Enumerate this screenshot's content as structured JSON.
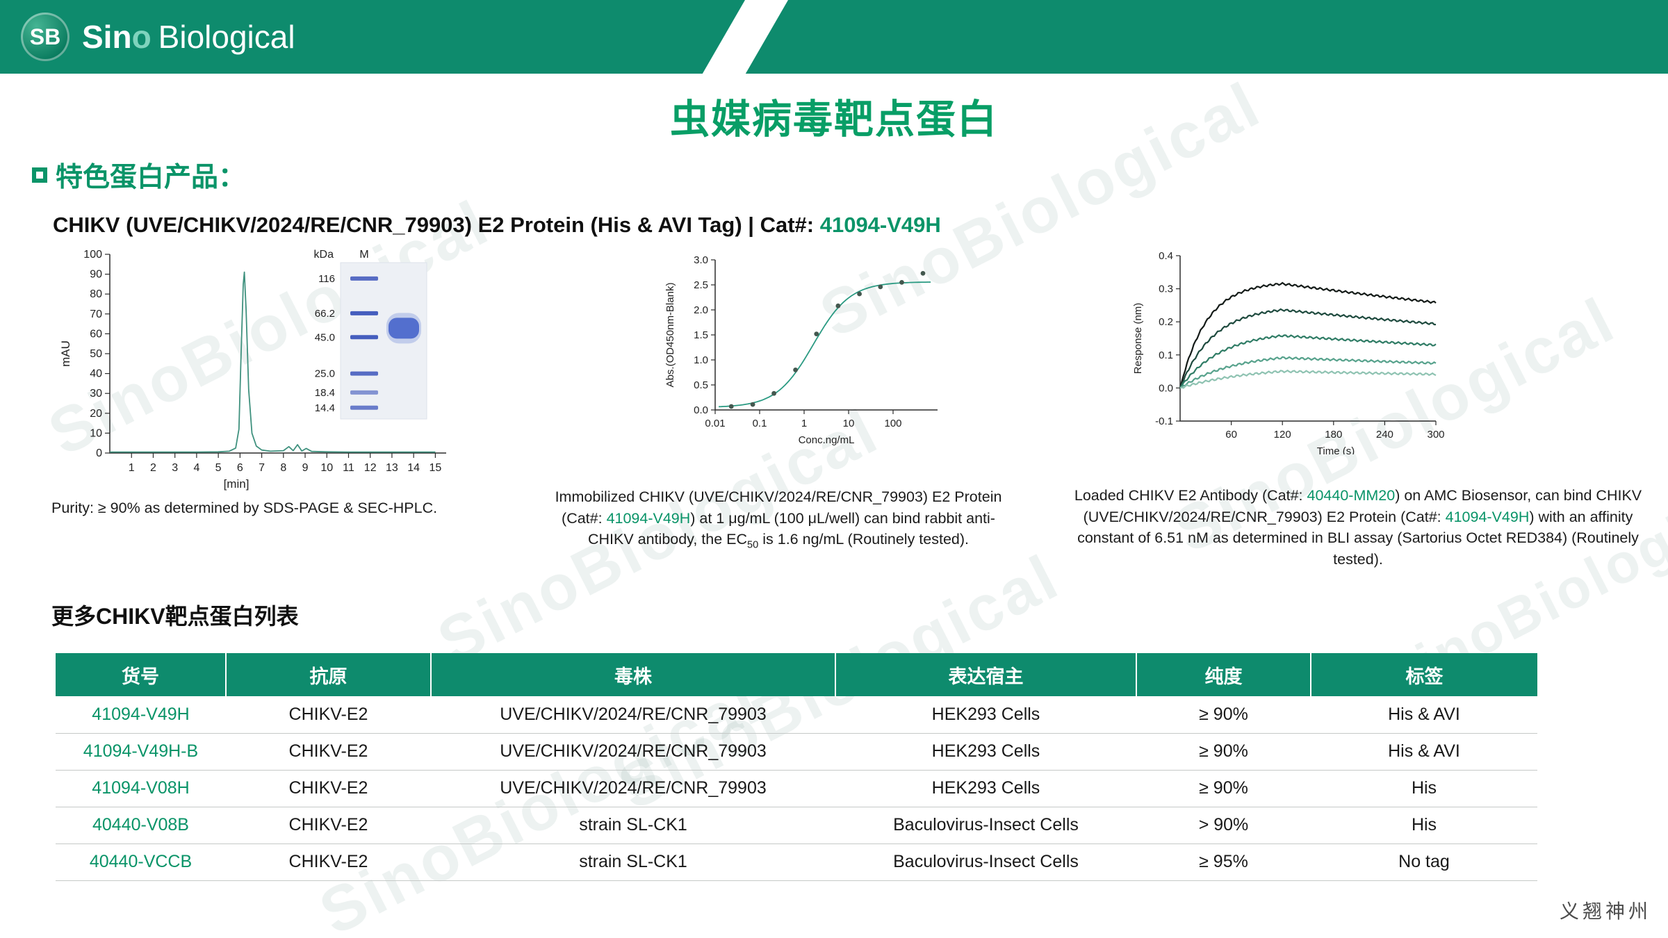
{
  "brand": {
    "logo_badge": "SB",
    "logo_sin": "Sin",
    "logo_o": "o",
    "logo_biological": "Biological",
    "green": "#0e8b6d"
  },
  "page": {
    "title": "虫媒病毒靶点蛋白",
    "section1_title": "特色蛋白产品：",
    "section2_title": "更多CHIKV靶点蛋白列表",
    "footer": "义翘神州",
    "watermark": "SinoBiological"
  },
  "product": {
    "heading_parts": [
      {
        "t": "CHIKV (UVE/CHIKV/2024/RE/CNR_79903) E2 Protein (His & AVI Tag) | Cat#: "
      },
      {
        "t": "41094-V49H",
        "c": "green"
      }
    ]
  },
  "figures": {
    "hplc_caption": "Purity: ≥ 90% as determined by SDS-PAGE & SEC-HPLC.",
    "elisa_caption": [
      {
        "t": "Immobilized CHIKV (UVE/CHIKV/2024/RE/CNR_79903) E2 Protein (Cat#: "
      },
      {
        "t": "41094-V49H",
        "c": "green"
      },
      {
        "t": ") at 1 μg/mL (100 μL/well) can bind rabbit anti- CHIKV antibody, the EC"
      },
      {
        "t": "50",
        "sub": true
      },
      {
        "t": " is 1.6 ng/mL (Routinely tested)."
      }
    ],
    "bli_caption": [
      {
        "t": "Loaded CHIKV E2 Antibody (Cat#: "
      },
      {
        "t": "40440-MM20",
        "c": "green"
      },
      {
        "t": ") on AMC Biosensor, can bind CHIKV (UVE/CHIKV/2024/RE/CNR_79903) E2 Protein (Cat#: "
      },
      {
        "t": "41094-V49H",
        "c": "green"
      },
      {
        "t": ") with an affinity constant of 6.51 nM as determined in BLI assay (Sartorius Octet RED384) (Routinely tested)."
      }
    ]
  },
  "table": {
    "headers": [
      "货号",
      "抗原",
      "毒株",
      "表达宿主",
      "纯度",
      "标签"
    ],
    "rows": [
      [
        "41094-V49H",
        "CHIKV-E2",
        "UVE/CHIKV/2024/RE/CNR_79903",
        "HEK293 Cells",
        "≥ 90%",
        "His & AVI"
      ],
      [
        "41094-V49H-B",
        "CHIKV-E2",
        "UVE/CHIKV/2024/RE/CNR_79903",
        "HEK293 Cells",
        "≥ 90%",
        "His & AVI"
      ],
      [
        "41094-V08H",
        "CHIKV-E2",
        "UVE/CHIKV/2024/RE/CNR_79903",
        "HEK293 Cells",
        "≥ 90%",
        "His"
      ],
      [
        "40440-V08B",
        "CHIKV-E2",
        "strain SL-CK1",
        "Baculovirus-Insect Cells",
        "> 90%",
        "His"
      ],
      [
        "40440-VCCB",
        "CHIKV-E2",
        "strain SL-CK1",
        "Baculovirus-Insect Cells",
        "≥ 95%",
        "No tag"
      ]
    ]
  },
  "chart_data": [
    {
      "id": "sec-hplc",
      "type": "line",
      "title": "SEC-HPLC purity trace with SDS-PAGE gel inset",
      "xlabel": "[min]",
      "ylabel": "mAU",
      "xlim": [
        0,
        15.5
      ],
      "ylim": [
        0,
        100
      ],
      "xticks": [
        1,
        2,
        3,
        4,
        5,
        6,
        7,
        8,
        9,
        10,
        11,
        12,
        13,
        14,
        15
      ],
      "yticks": [
        0,
        10,
        20,
        30,
        40,
        50,
        60,
        70,
        80,
        90,
        100
      ],
      "line_color": "#3f917e",
      "peak_min": 6.2,
      "peak_mau": 91,
      "points": [
        [
          0,
          0.5
        ],
        [
          1,
          0.5
        ],
        [
          2,
          0.5
        ],
        [
          3,
          0.5
        ],
        [
          4,
          0.5
        ],
        [
          5,
          0.6
        ],
        [
          5.5,
          0.9
        ],
        [
          5.8,
          2.5
        ],
        [
          5.95,
          12
        ],
        [
          6.05,
          50
        ],
        [
          6.15,
          85
        ],
        [
          6.2,
          91
        ],
        [
          6.28,
          72
        ],
        [
          6.4,
          32
        ],
        [
          6.55,
          10
        ],
        [
          6.75,
          3.5
        ],
        [
          7.0,
          1.5
        ],
        [
          7.4,
          0.9
        ],
        [
          8.0,
          1.2
        ],
        [
          8.25,
          3.2
        ],
        [
          8.45,
          1.2
        ],
        [
          8.65,
          4.2
        ],
        [
          8.85,
          1.0
        ],
        [
          9.05,
          2.3
        ],
        [
          9.3,
          0.8
        ],
        [
          10,
          0.6
        ],
        [
          11,
          0.5
        ],
        [
          12,
          0.5
        ],
        [
          13,
          0.5
        ],
        [
          14,
          0.5
        ],
        [
          15,
          0.5
        ]
      ],
      "gel": {
        "unit_label": "kDa",
        "lane_label": "M",
        "markers": [
          "116",
          "66.2",
          "45.0",
          "25.0",
          "18.4",
          "14.4"
        ],
        "sample_band_kda": 52
      }
    },
    {
      "id": "elisa",
      "type": "scatter",
      "title": "ELISA binding curve",
      "xlabel": "Conc.ng/mL",
      "ylabel": "Abs.(OD450nm-Blank)",
      "xscale": "log",
      "xlim": [
        0.01,
        1000
      ],
      "ylim": [
        0,
        3
      ],
      "xticks": [
        0.01,
        0.1,
        1,
        10,
        100
      ],
      "yticks": [
        0,
        0.5,
        1,
        1.5,
        2,
        2.5,
        3
      ],
      "point_color": "#44584f",
      "line_color": "#2a9a82",
      "x": [
        0.023,
        0.07,
        0.21,
        0.64,
        1.9,
        5.8,
        17.5,
        52,
        157,
        470
      ],
      "y": [
        0.07,
        0.11,
        0.33,
        0.8,
        1.52,
        2.08,
        2.32,
        2.46,
        2.55,
        2.73
      ],
      "fit": {
        "bottom": 0.05,
        "top": 2.56,
        "ec50": 1.6,
        "hill": 1.05
      },
      "ec50_ng_ml": 1.6
    },
    {
      "id": "bli",
      "type": "line",
      "title": "BLI sensorgram",
      "xlabel": "Time (s)",
      "ylabel": "Response (nm)",
      "xlim": [
        0,
        300
      ],
      "ylim": [
        -0.1,
        0.4
      ],
      "xticks": [
        60,
        120,
        180,
        240,
        300
      ],
      "yticks": [
        -0.1,
        0,
        0.1,
        0.2,
        0.3,
        0.4
      ],
      "association_end_s": 120,
      "affinity_nM": 6.51,
      "series": [
        {
          "rmax": 0.322,
          "kobs": 0.032,
          "koff": 0.0011,
          "color": "#141b18"
        },
        {
          "rmax": 0.247,
          "kobs": 0.026,
          "koff": 0.0011,
          "color": "#1e4a3e"
        },
        {
          "rmax": 0.172,
          "kobs": 0.021,
          "koff": 0.0011,
          "color": "#2f7c65"
        },
        {
          "rmax": 0.107,
          "kobs": 0.016,
          "koff": 0.0011,
          "color": "#57a28c"
        },
        {
          "rmax": 0.066,
          "kobs": 0.012,
          "koff": 0.0011,
          "color": "#8fc3b2"
        }
      ]
    }
  ]
}
